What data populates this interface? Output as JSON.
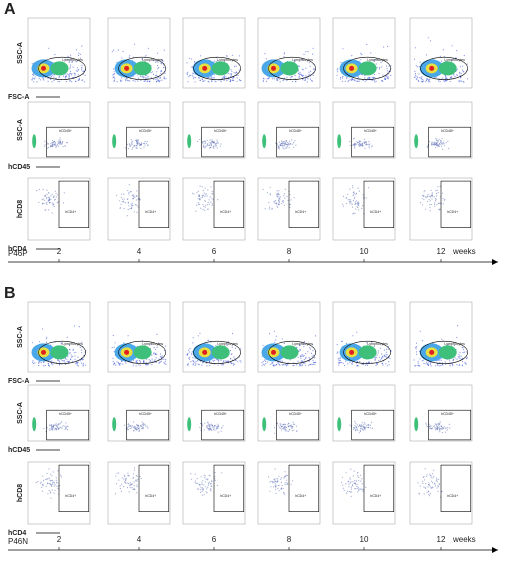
{
  "panels": [
    {
      "label": "A",
      "axis_label": "P46P",
      "rows": [
        {
          "y_label": "SSC-A",
          "x_label": "FSC-A",
          "gate": "Lymphocytes"
        },
        {
          "y_label": "SSC-A",
          "x_label": "hCD45",
          "gate": "hCD45+"
        },
        {
          "y_label": "hCD8",
          "x_label": "hCD4",
          "gate": "hCD4+"
        }
      ],
      "time_labels": [
        "2",
        "4",
        "6",
        "8",
        "10",
        "12"
      ],
      "time_unit": "weeks"
    },
    {
      "label": "B",
      "axis_label": "P46N",
      "rows": [
        {
          "y_label": "SSC-A",
          "x_label": "FSC-A",
          "gate": "Lymphocytes"
        },
        {
          "y_label": "SSC-A",
          "x_label": "hCD45",
          "gate": "hCD45+"
        },
        {
          "y_label": "hCD8",
          "x_label": "hCD4",
          "gate": "hCD4+"
        }
      ],
      "time_labels": [
        "2",
        "4",
        "6",
        "8",
        "10",
        "12"
      ],
      "time_unit": "weeks"
    }
  ]
}
